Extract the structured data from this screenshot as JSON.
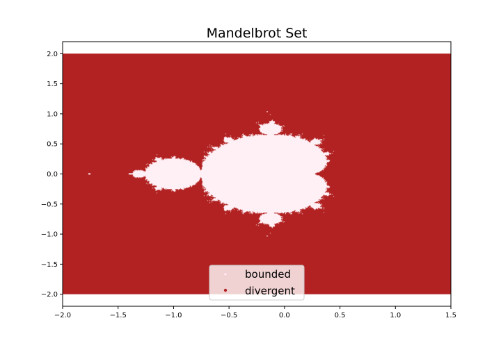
{
  "chart_data": {
    "type": "scatter",
    "title": "Mandelbrot Set",
    "xlabel": "",
    "ylabel": "",
    "xlim": [
      -2.0,
      1.5
    ],
    "ylim": [
      -2.2,
      2.2
    ],
    "data_extent": {
      "x": [
        -2.0,
        1.5
      ],
      "y": [
        -2.0,
        2.0
      ]
    },
    "x_ticks": [
      "−2.0",
      "−1.5",
      "−1.0",
      "−0.5",
      "0.0",
      "0.5",
      "1.0",
      "1.5"
    ],
    "x_tick_values": [
      -2.0,
      -1.5,
      -1.0,
      -0.5,
      0.0,
      0.5,
      1.0,
      1.5
    ],
    "y_ticks": [
      "−2.0",
      "−1.5",
      "−1.0",
      "−0.5",
      "0.0",
      "0.5",
      "1.0",
      "1.5",
      "2.0"
    ],
    "y_tick_values": [
      -2.0,
      -1.5,
      -1.0,
      -0.5,
      0.0,
      0.5,
      1.0,
      1.5,
      2.0
    ],
    "grid": false,
    "legend_position": "bottom-center",
    "series": [
      {
        "name": "bounded",
        "color": "#fff0f5",
        "description_values": {
          "main_cardioid_x_range": [
            -0.75,
            0.37
          ],
          "period2_bulb_center": [
            -1.0,
            0.0
          ]
        }
      },
      {
        "name": "divergent",
        "color": "#b22222"
      }
    ]
  }
}
